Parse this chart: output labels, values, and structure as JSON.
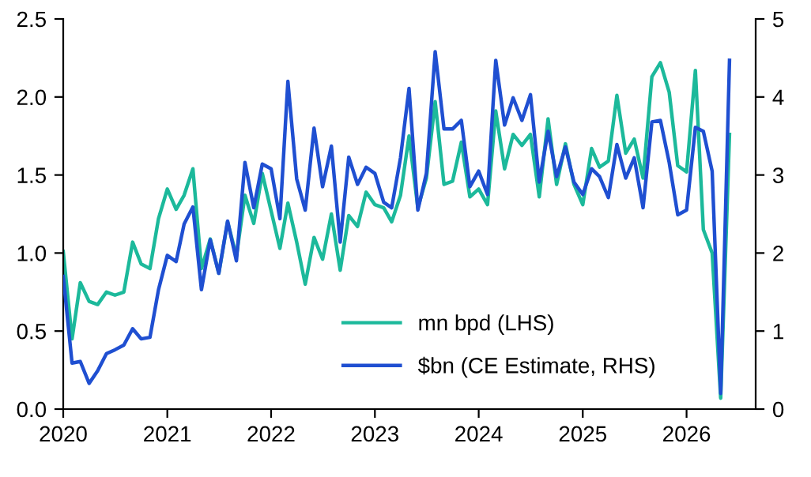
{
  "chart_data": {
    "type": "line",
    "x": [
      "2020-01",
      "2020-02",
      "2020-03",
      "2020-04",
      "2020-05",
      "2020-06",
      "2020-07",
      "2020-08",
      "2020-09",
      "2020-10",
      "2020-11",
      "2020-12",
      "2021-01",
      "2021-02",
      "2021-03",
      "2021-04",
      "2021-05",
      "2021-06",
      "2021-07",
      "2021-08",
      "2021-09",
      "2021-10",
      "2021-11",
      "2021-12",
      "2022-01",
      "2022-02",
      "2022-03",
      "2022-04",
      "2022-05",
      "2022-06",
      "2022-07",
      "2022-08",
      "2022-09",
      "2022-10",
      "2022-11",
      "2022-12",
      "2023-01",
      "2023-02",
      "2023-03",
      "2023-04",
      "2023-05",
      "2023-06",
      "2023-07",
      "2023-08",
      "2023-09",
      "2023-10",
      "2023-11",
      "2023-12",
      "2024-01",
      "2024-02",
      "2024-03",
      "2024-04",
      "2024-05",
      "2024-06",
      "2024-07",
      "2024-08",
      "2024-09",
      "2024-10",
      "2024-11",
      "2024-12",
      "2025-01",
      "2025-02",
      "2025-03",
      "2025-04",
      "2025-05",
      "2025-06",
      "2025-07",
      "2025-08",
      "2025-09",
      "2025-10",
      "2025-11",
      "2025-12",
      "2026-01",
      "2026-02",
      "2026-03",
      "2026-04",
      "2026-05",
      "2026-06"
    ],
    "series": [
      {
        "name": "mn bpd (LHS)",
        "color": "#1cb99b",
        "axis": "y",
        "values": [
          1.01,
          0.45,
          0.81,
          0.69,
          0.67,
          0.75,
          0.73,
          0.75,
          1.07,
          0.93,
          0.9,
          1.22,
          1.41,
          1.28,
          1.37,
          1.54,
          0.9,
          1.09,
          0.87,
          1.2,
          0.98,
          1.37,
          1.19,
          1.51,
          1.27,
          1.03,
          1.32,
          1.07,
          0.8,
          1.1,
          0.96,
          1.25,
          0.89,
          1.24,
          1.17,
          1.39,
          1.31,
          1.29,
          1.2,
          1.37,
          1.75,
          1.29,
          1.48,
          1.97,
          1.44,
          1.46,
          1.71,
          1.36,
          1.41,
          1.31,
          1.91,
          1.54,
          1.76,
          1.69,
          1.76,
          1.36,
          1.86,
          1.44,
          1.7,
          1.44,
          1.31,
          1.67,
          1.55,
          1.59,
          2.01,
          1.64,
          1.73,
          1.48,
          2.13,
          2.22,
          2.03,
          1.56,
          1.52,
          2.17,
          1.15,
          1.0,
          0.07,
          1.76
        ]
      },
      {
        "name": "$bn (CE Estimate, RHS)",
        "color": "#1f4fd1",
        "axis": "y2",
        "values": [
          1.7,
          0.59,
          0.61,
          0.33,
          0.49,
          0.71,
          0.76,
          0.82,
          1.03,
          0.9,
          0.92,
          1.53,
          1.97,
          1.89,
          2.37,
          2.59,
          1.53,
          2.17,
          1.74,
          2.41,
          1.9,
          3.16,
          2.58,
          3.14,
          3.08,
          2.44,
          4.2,
          2.95,
          2.55,
          3.6,
          2.85,
          3.37,
          2.14,
          3.23,
          2.88,
          3.1,
          3.02,
          2.65,
          2.58,
          3.22,
          4.11,
          2.55,
          3.02,
          4.58,
          3.59,
          3.59,
          3.7,
          2.85,
          3.05,
          2.75,
          4.47,
          3.64,
          3.99,
          3.7,
          4.03,
          2.91,
          3.56,
          2.98,
          3.36,
          2.91,
          2.75,
          3.08,
          2.98,
          2.71,
          3.39,
          2.96,
          3.22,
          2.58,
          3.68,
          3.7,
          3.16,
          2.49,
          2.55,
          3.61,
          3.56,
          3.05,
          0.2,
          4.47
        ]
      }
    ],
    "xlim": [
      "2020-01",
      "2026-09"
    ],
    "xticks": [
      {
        "value": "2020-01",
        "label": "2020"
      },
      {
        "value": "2021-01",
        "label": "2021"
      },
      {
        "value": "2022-01",
        "label": "2022"
      },
      {
        "value": "2023-01",
        "label": "2023"
      },
      {
        "value": "2024-01",
        "label": "2024"
      },
      {
        "value": "2025-01",
        "label": "2025"
      },
      {
        "value": "2026-01",
        "label": "2026"
      }
    ],
    "ylim": [
      0,
      2.5
    ],
    "yticks": [
      {
        "value": 0,
        "label": "0.0"
      },
      {
        "value": 0.5,
        "label": "0.5"
      },
      {
        "value": 1,
        "label": "1.0"
      },
      {
        "value": 1.5,
        "label": "1.5"
      },
      {
        "value": 2,
        "label": "2.0"
      },
      {
        "value": 2.5,
        "label": "2.5"
      }
    ],
    "y2lim": [
      0,
      5
    ],
    "y2ticks": [
      0,
      1,
      2,
      3,
      4,
      5
    ],
    "grid": false,
    "legend": "bottom",
    "marker": "none",
    "line_style": "solid"
  }
}
